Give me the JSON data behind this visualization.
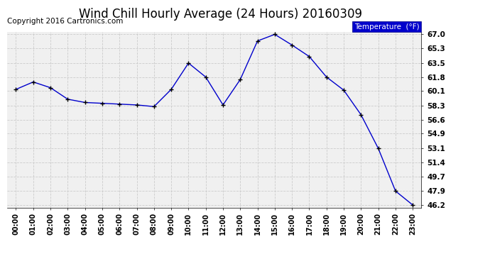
{
  "title": "Wind Chill Hourly Average (24 Hours) 20160309",
  "copyright": "Copyright 2016 Cartronics.com",
  "legend_label": "Temperature  (°F)",
  "x_labels": [
    "00:00",
    "01:00",
    "02:00",
    "03:00",
    "04:00",
    "05:00",
    "06:00",
    "07:00",
    "08:00",
    "09:00",
    "10:00",
    "11:00",
    "12:00",
    "13:00",
    "14:00",
    "15:00",
    "16:00",
    "17:00",
    "18:00",
    "19:00",
    "20:00",
    "21:00",
    "22:00",
    "23:00"
  ],
  "y_values": [
    60.3,
    61.2,
    60.5,
    59.1,
    58.7,
    58.6,
    58.5,
    58.4,
    58.2,
    60.3,
    63.5,
    61.8,
    58.4,
    61.5,
    66.2,
    67.0,
    65.7,
    64.3,
    61.8,
    60.2,
    57.2,
    53.1,
    47.9,
    46.2
  ],
  "line_color": "#0000cc",
  "marker_color": "#000000",
  "background_color": "#ffffff",
  "plot_bg_color": "#f0f0f0",
  "grid_color": "#cccccc",
  "title_fontsize": 12,
  "copyright_fontsize": 7.5,
  "legend_bg": "#0000cc",
  "legend_text_color": "#ffffff",
  "y_min": 46.2,
  "y_max": 67.0,
  "y_ticks": [
    46.2,
    47.9,
    49.7,
    51.4,
    53.1,
    54.9,
    56.6,
    58.3,
    60.1,
    61.8,
    63.5,
    65.3,
    67.0
  ]
}
